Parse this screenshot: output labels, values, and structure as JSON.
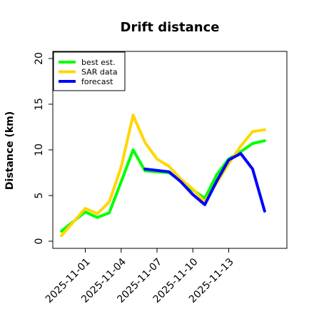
{
  "chart_data": {
    "type": "line",
    "title": "Drift distance",
    "xlabel": "",
    "ylabel": "Distance (km)",
    "ylim": [
      0,
      20
    ],
    "yticks": [
      0,
      5,
      10,
      15,
      20
    ],
    "ytick_labels": [
      "0",
      "5",
      "10",
      "15",
      "20"
    ],
    "xticks": [
      "2025-11-01",
      "2025-11-04",
      "2025-11-07",
      "2025-11-10",
      "2025-11-13"
    ],
    "grid": false,
    "legend_position": "top-left",
    "series": [
      {
        "name": "best est.",
        "color": "#00ff00",
        "points": [
          {
            "x": "2025-10-30",
            "y": 1.1
          },
          {
            "x": "2025-11-01",
            "y": 3.2
          },
          {
            "x": "2025-11-02",
            "y": 2.6
          },
          {
            "x": "2025-11-03",
            "y": 3.1
          },
          {
            "x": "2025-11-04",
            "y": 6.5
          },
          {
            "x": "2025-11-05",
            "y": 10.0
          },
          {
            "x": "2025-11-06",
            "y": 7.7
          },
          {
            "x": "2025-11-07",
            "y": 7.6
          },
          {
            "x": "2025-11-08",
            "y": 7.5
          },
          {
            "x": "2025-11-09",
            "y": 6.6
          },
          {
            "x": "2025-11-10",
            "y": 5.6
          },
          {
            "x": "2025-11-11",
            "y": 4.7
          },
          {
            "x": "2025-11-12",
            "y": 7.3
          },
          {
            "x": "2025-11-13",
            "y": 9.0
          },
          {
            "x": "2025-11-14",
            "y": 9.8
          },
          {
            "x": "2025-11-15",
            "y": 10.7
          },
          {
            "x": "2025-11-16",
            "y": 11.0
          }
        ]
      },
      {
        "name": "SAR data",
        "color": "#ffd700",
        "points": [
          {
            "x": "2025-10-30",
            "y": 0.6
          },
          {
            "x": "2025-11-01",
            "y": 3.6
          },
          {
            "x": "2025-11-02",
            "y": 3.0
          },
          {
            "x": "2025-11-03",
            "y": 4.3
          },
          {
            "x": "2025-11-04",
            "y": 8.1
          },
          {
            "x": "2025-11-05",
            "y": 13.8
          },
          {
            "x": "2025-11-06",
            "y": 10.8
          },
          {
            "x": "2025-11-07",
            "y": 9.0
          },
          {
            "x": "2025-11-08",
            "y": 8.2
          },
          {
            "x": "2025-11-09",
            "y": 6.8
          },
          {
            "x": "2025-11-10",
            "y": 5.7
          },
          {
            "x": "2025-11-11",
            "y": 4.3
          },
          {
            "x": "2025-11-12",
            "y": 6.4
          },
          {
            "x": "2025-11-13",
            "y": 8.5
          },
          {
            "x": "2025-11-14",
            "y": 10.4
          },
          {
            "x": "2025-11-15",
            "y": 12.0
          },
          {
            "x": "2025-11-16",
            "y": 12.2
          }
        ]
      },
      {
        "name": "forecast",
        "color": "#0000ff",
        "points": [
          {
            "x": "2025-11-06",
            "y": 7.9
          },
          {
            "x": "2025-11-08",
            "y": 7.6
          },
          {
            "x": "2025-11-09",
            "y": 6.5
          },
          {
            "x": "2025-11-10",
            "y": 5.1
          },
          {
            "x": "2025-11-11",
            "y": 4.0
          },
          {
            "x": "2025-11-12",
            "y": 6.6
          },
          {
            "x": "2025-11-13",
            "y": 8.9
          },
          {
            "x": "2025-11-14",
            "y": 9.6
          },
          {
            "x": "2025-11-15",
            "y": 7.9
          },
          {
            "x": "2025-11-16",
            "y": 3.3
          }
        ]
      }
    ]
  }
}
